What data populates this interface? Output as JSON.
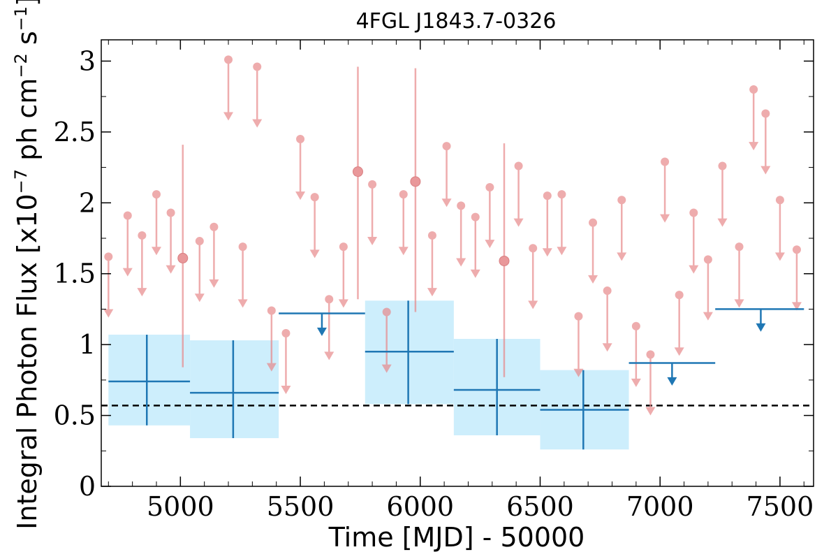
{
  "chart_data": {
    "type": "scatter",
    "title": "4FGL J1843.7-0326",
    "xlabel": "Time [MJD] - 50000",
    "ylabel": "Integral Photon Flux [x10",
    "ylabel_exp1": "−7",
    "ylabel_mid": " ph cm",
    "ylabel_exp2": "−2",
    "ylabel_mid2": " s",
    "ylabel_exp3": "−1",
    "ylabel_end": "]",
    "xlim": [
      4670,
      7640
    ],
    "ylim": [
      0,
      3.15
    ],
    "xticks": [
      {
        "value": 5000,
        "label": "5000"
      },
      {
        "value": 5500,
        "label": "5500"
      },
      {
        "value": 6000,
        "label": "6000"
      },
      {
        "value": 6500,
        "label": "6500"
      },
      {
        "value": 7000,
        "label": "7000"
      },
      {
        "value": 7500,
        "label": "7500"
      }
    ],
    "yticks": [
      {
        "value": 0,
        "label": "0"
      },
      {
        "value": 0.5,
        "label": "0.5"
      },
      {
        "value": 1,
        "label": "1"
      },
      {
        "value": 1.5,
        "label": "1.5"
      },
      {
        "value": 2,
        "label": "2"
      },
      {
        "value": 2.5,
        "label": "2.5"
      },
      {
        "value": 3,
        "label": "3"
      }
    ],
    "reference_line": {
      "y": 0.57,
      "style": "dashed",
      "color": "#000000"
    },
    "colors": {
      "fine": "#e8898b",
      "coarse": "#1f77b4",
      "coarse_band": "#cdeefc"
    },
    "series": [
      {
        "bin": "fine",
        "upper_limits": [
          {
            "x": 4700,
            "y": 1.62
          },
          {
            "x": 4780,
            "y": 1.91
          },
          {
            "x": 4840,
            "y": 1.77
          },
          {
            "x": 4900,
            "y": 2.06
          },
          {
            "x": 4960,
            "y": 1.93
          },
          {
            "x": 5080,
            "y": 1.73
          },
          {
            "x": 5140,
            "y": 1.83
          },
          {
            "x": 5200,
            "y": 3.01
          },
          {
            "x": 5260,
            "y": 1.69
          },
          {
            "x": 5320,
            "y": 2.96
          },
          {
            "x": 5380,
            "y": 1.24
          },
          {
            "x": 5440,
            "y": 1.08
          },
          {
            "x": 5500,
            "y": 2.45
          },
          {
            "x": 5560,
            "y": 2.04
          },
          {
            "x": 5620,
            "y": 1.32
          },
          {
            "x": 5680,
            "y": 1.69
          },
          {
            "x": 5800,
            "y": 2.13
          },
          {
            "x": 5860,
            "y": 1.23
          },
          {
            "x": 5930,
            "y": 2.06
          },
          {
            "x": 6050,
            "y": 1.77
          },
          {
            "x": 6110,
            "y": 2.4
          },
          {
            "x": 6170,
            "y": 1.98
          },
          {
            "x": 6230,
            "y": 1.9
          },
          {
            "x": 6290,
            "y": 2.11
          },
          {
            "x": 6410,
            "y": 2.26
          },
          {
            "x": 6470,
            "y": 1.68
          },
          {
            "x": 6530,
            "y": 2.05
          },
          {
            "x": 6590,
            "y": 2.06
          },
          {
            "x": 6660,
            "y": 1.2
          },
          {
            "x": 6720,
            "y": 1.86
          },
          {
            "x": 6780,
            "y": 1.38
          },
          {
            "x": 6840,
            "y": 2.02
          },
          {
            "x": 6900,
            "y": 1.13
          },
          {
            "x": 6960,
            "y": 0.93
          },
          {
            "x": 7020,
            "y": 2.29
          },
          {
            "x": 7080,
            "y": 1.35
          },
          {
            "x": 7140,
            "y": 1.93
          },
          {
            "x": 7200,
            "y": 1.6
          },
          {
            "x": 7260,
            "y": 2.26
          },
          {
            "x": 7330,
            "y": 1.69
          },
          {
            "x": 7390,
            "y": 2.8
          },
          {
            "x": 7440,
            "y": 2.63
          },
          {
            "x": 7500,
            "y": 2.02
          },
          {
            "x": 7570,
            "y": 1.67
          }
        ],
        "detections": [
          {
            "x": 5010,
            "y": 1.61,
            "err_low": 0.84,
            "err_high": 2.41
          },
          {
            "x": 5740,
            "y": 2.22,
            "err_low": 1.32,
            "err_high": 2.96
          },
          {
            "x": 5980,
            "y": 2.15,
            "err_low": 1.23,
            "err_high": 2.95
          },
          {
            "x": 6350,
            "y": 1.59,
            "err_low": 0.77,
            "err_high": 2.42
          }
        ]
      },
      {
        "bin": "coarse",
        "detections": [
          {
            "x": 4860,
            "x_low": 4700,
            "x_high": 5040,
            "y": 0.74,
            "err_low": 0.43,
            "err_high": 1.07
          },
          {
            "x": 5220,
            "x_low": 5040,
            "x_high": 5410,
            "y": 0.66,
            "err_low": 0.34,
            "err_high": 1.03
          },
          {
            "x": 5950,
            "x_low": 5770,
            "x_high": 6140,
            "y": 0.95,
            "err_low": 0.58,
            "err_high": 1.31
          },
          {
            "x": 6320,
            "x_low": 6140,
            "x_high": 6500,
            "y": 0.68,
            "err_low": 0.36,
            "err_high": 1.04
          },
          {
            "x": 6680,
            "x_low": 6500,
            "x_high": 6870,
            "y": 0.54,
            "err_low": 0.26,
            "err_high": 0.82
          }
        ],
        "upper_limits": [
          {
            "x": 5590,
            "x_low": 5410,
            "x_high": 5770,
            "y": 1.22
          },
          {
            "x": 7050,
            "x_low": 6870,
            "x_high": 7230,
            "y": 0.87
          },
          {
            "x": 7420,
            "x_low": 7230,
            "x_high": 7600,
            "y": 1.25
          }
        ]
      }
    ]
  }
}
